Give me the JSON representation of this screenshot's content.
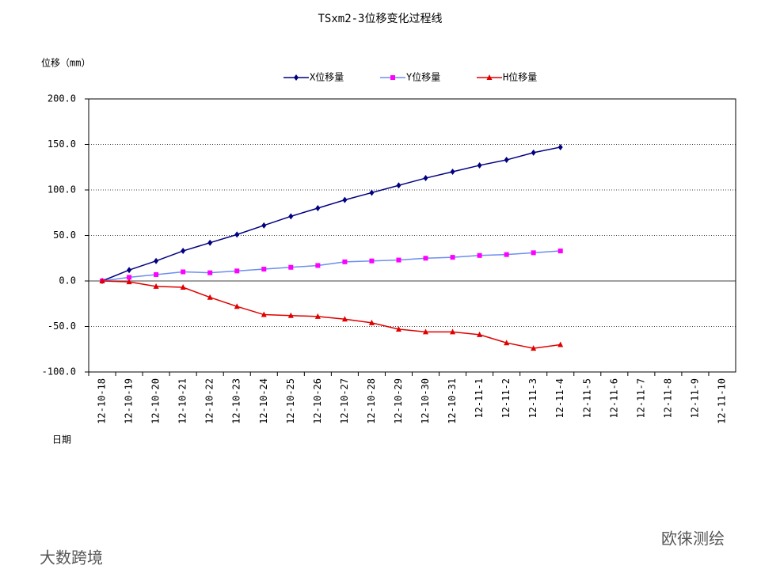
{
  "chart_data": {
    "type": "line",
    "title": "TSxm2-3位移变化过程线",
    "y_label": "位移（mm）",
    "x_label": "日期",
    "categories": [
      "12-10-18",
      "12-10-19",
      "12-10-20",
      "12-10-21",
      "12-10-22",
      "12-10-23",
      "12-10-24",
      "12-10-25",
      "12-10-26",
      "12-10-27",
      "12-10-28",
      "12-10-29",
      "12-10-30",
      "12-10-31",
      "12-11-1",
      "12-11-2",
      "12-11-3",
      "12-11-4",
      "12-11-5",
      "12-11-6",
      "12-11-7",
      "12-11-8",
      "12-11-9",
      "12-11-10"
    ],
    "series": [
      {
        "name": "X位移量",
        "color": "#000080",
        "marker_color": "#000080",
        "marker": "diamond",
        "values": [
          0,
          12,
          22,
          33,
          42,
          51,
          61,
          71,
          80,
          89,
          97,
          105,
          113,
          120,
          127,
          133,
          141,
          147,
          null,
          null,
          null,
          null,
          null,
          null
        ]
      },
      {
        "name": "Y位移量",
        "color": "#6b8ef0",
        "marker_color": "#ff00ff",
        "marker": "square",
        "values": [
          0,
          4,
          7,
          10,
          9,
          11,
          13,
          15,
          17,
          21,
          22,
          23,
          25,
          26,
          28,
          29,
          31,
          33,
          null,
          null,
          null,
          null,
          null,
          null
        ]
      },
      {
        "name": "H位移量",
        "color": "#e00000",
        "marker_color": "#e00000",
        "marker": "triangle",
        "values": [
          0,
          -1,
          -6,
          -7,
          -18,
          -28,
          -37,
          -38,
          -39,
          -42,
          -46,
          -53,
          -56,
          -56,
          -59,
          -68,
          -74,
          -70,
          null,
          null,
          null,
          null,
          null,
          null
        ]
      }
    ],
    "ylim": [
      -100,
      200
    ],
    "yticks": [
      {
        "value": -100,
        "label": "-100.0"
      },
      {
        "value": -50,
        "label": "-50.0"
      },
      {
        "value": 0,
        "label": "0.0"
      },
      {
        "value": 50,
        "label": "50.0"
      },
      {
        "value": 100,
        "label": "100.0"
      },
      {
        "value": 150,
        "label": "150.0"
      },
      {
        "value": 200,
        "label": "200.0"
      }
    ],
    "grid": true,
    "legend": "top",
    "watermarks": [
      "大数跨境",
      "欧徕测绘"
    ]
  }
}
